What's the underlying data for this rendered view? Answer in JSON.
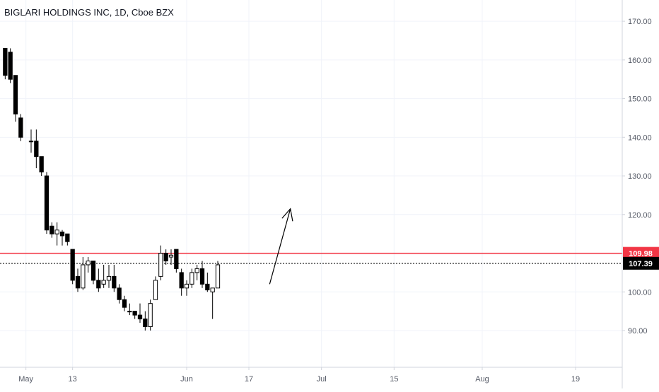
{
  "title": "BIGLARI HOLDINGS INC, 1D, Cboe BZX",
  "chart_data": {
    "type": "candlestick",
    "title": "BIGLARI HOLDINGS INC, 1D, Cboe BZX",
    "ylim": [
      80.5,
      175.5
    ],
    "y_ticks": [
      "170.00",
      "160.00",
      "150.00",
      "140.00",
      "130.00",
      "120.00",
      "110.00",
      "100.00",
      "90.00"
    ],
    "y_tick_values": [
      170,
      160,
      150,
      140,
      130,
      120,
      110,
      100,
      90
    ],
    "x_ticks": [
      {
        "label": "May",
        "day": 4
      },
      {
        "label": "13",
        "day": 13
      },
      {
        "label": "Jun",
        "day": 35
      },
      {
        "label": "17",
        "day": 47
      },
      {
        "label": "Jul",
        "day": 61
      },
      {
        "label": "15",
        "day": 75
      },
      {
        "label": "Aug",
        "day": 92
      },
      {
        "label": "19",
        "day": 110
      }
    ],
    "x_range": [
      -1,
      119
    ],
    "grid": true,
    "candles": [
      {
        "day": 0,
        "o": 163,
        "h": 163,
        "l": 155,
        "c": 156
      },
      {
        "day": 1,
        "o": 162,
        "h": 163,
        "l": 154,
        "c": 155
      },
      {
        "day": 2,
        "o": 156,
        "h": 156,
        "l": 144,
        "c": 146
      },
      {
        "day": 3,
        "o": 145,
        "h": 146,
        "l": 139,
        "c": 140
      },
      {
        "day": 5,
        "o": 139,
        "h": 142,
        "l": 136,
        "c": 139
      },
      {
        "day": 6,
        "o": 139,
        "h": 142,
        "l": 132,
        "c": 135
      },
      {
        "day": 7,
        "o": 135,
        "h": 135,
        "l": 130,
        "c": 131
      },
      {
        "day": 8,
        "o": 130,
        "h": 131,
        "l": 115,
        "c": 116
      },
      {
        "day": 9,
        "o": 117,
        "h": 118,
        "l": 114,
        "c": 115
      },
      {
        "day": 10,
        "o": 115,
        "h": 118,
        "l": 112,
        "c": 116
      },
      {
        "day": 11,
        "o": 115.5,
        "h": 116,
        "l": 112,
        "c": 114.5
      },
      {
        "day": 12,
        "o": 115,
        "h": 115,
        "l": 112,
        "c": 113
      },
      {
        "day": 13,
        "o": 111,
        "h": 111,
        "l": 102,
        "c": 103
      },
      {
        "day": 14,
        "o": 104,
        "h": 106,
        "l": 100,
        "c": 101
      },
      {
        "day": 15,
        "o": 101,
        "h": 109,
        "l": 100.5,
        "c": 107
      },
      {
        "day": 16,
        "o": 107,
        "h": 109,
        "l": 105,
        "c": 108
      },
      {
        "day": 17,
        "o": 108,
        "h": 108,
        "l": 102,
        "c": 103
      },
      {
        "day": 18,
        "o": 103,
        "h": 106,
        "l": 100,
        "c": 101
      },
      {
        "day": 19,
        "o": 102,
        "h": 107,
        "l": 101,
        "c": 103
      },
      {
        "day": 20,
        "o": 103,
        "h": 107,
        "l": 101,
        "c": 104
      },
      {
        "day": 21,
        "o": 104,
        "h": 107,
        "l": 100,
        "c": 101
      },
      {
        "day": 22,
        "o": 101,
        "h": 102,
        "l": 97,
        "c": 98
      },
      {
        "day": 23,
        "o": 98,
        "h": 99,
        "l": 95,
        "c": 96
      },
      {
        "day": 24,
        "o": 95,
        "h": 97,
        "l": 94,
        "c": 95
      },
      {
        "day": 25,
        "o": 95,
        "h": 95,
        "l": 93,
        "c": 94
      },
      {
        "day": 26,
        "o": 94,
        "h": 97,
        "l": 92,
        "c": 93
      },
      {
        "day": 27,
        "o": 93,
        "h": 95,
        "l": 90,
        "c": 91
      },
      {
        "day": 28,
        "o": 91,
        "h": 98,
        "l": 90,
        "c": 97
      },
      {
        "day": 29,
        "o": 98,
        "h": 104,
        "l": 98,
        "c": 103
      },
      {
        "day": 30,
        "o": 104,
        "h": 112,
        "l": 103,
        "c": 110
      },
      {
        "day": 31,
        "o": 110,
        "h": 111,
        "l": 107,
        "c": 108
      },
      {
        "day": 32,
        "o": 109,
        "h": 111,
        "l": 107,
        "c": 109.5
      },
      {
        "day": 33,
        "o": 111,
        "h": 111,
        "l": 105,
        "c": 106
      },
      {
        "day": 34,
        "o": 105,
        "h": 106,
        "l": 99,
        "c": 101
      },
      {
        "day": 35,
        "o": 101,
        "h": 103,
        "l": 99,
        "c": 102
      },
      {
        "day": 36,
        "o": 102,
        "h": 106,
        "l": 101,
        "c": 105
      },
      {
        "day": 37,
        "o": 105,
        "h": 107,
        "l": 103,
        "c": 106
      },
      {
        "day": 38,
        "o": 106,
        "h": 108,
        "l": 101,
        "c": 102
      },
      {
        "day": 39,
        "o": 102,
        "h": 105,
        "l": 100,
        "c": 100.5
      },
      {
        "day": 40,
        "o": 100,
        "h": 101,
        "l": 93,
        "c": 101
      },
      {
        "day": 41,
        "o": 101,
        "h": 108,
        "l": 101,
        "c": 107
      }
    ],
    "horizontal_lines": [
      {
        "price": 109.98,
        "label": "109.98",
        "color": "#f23645",
        "style": "solid"
      },
      {
        "price": 107.39,
        "label": "107.39",
        "color": "#000000",
        "style": "dotted"
      }
    ],
    "annotation_arrow": {
      "from": {
        "day": 51,
        "price": 102
      },
      "to": {
        "day": 55,
        "price": 121.5
      }
    }
  },
  "colors": {
    "up_fill": "#ffffff",
    "down_fill": "#000000",
    "candle_outline": "#000000",
    "grid": "#f0f3fa",
    "axis_line": "#d1d4dc",
    "resistance": "#f23645",
    "last_price_bg": "#000000"
  }
}
